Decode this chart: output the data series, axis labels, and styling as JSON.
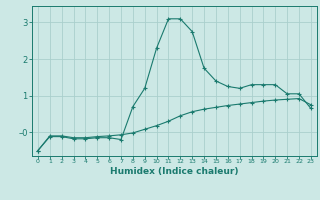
{
  "xlabel": "Humidex (Indice chaleur)",
  "bg_color": "#cce8e5",
  "line_color": "#1a7a6e",
  "grid_color": "#aacfcc",
  "x_values": [
    0,
    1,
    2,
    3,
    4,
    5,
    6,
    7,
    8,
    9,
    10,
    11,
    12,
    13,
    14,
    15,
    16,
    17,
    18,
    19,
    20,
    21,
    22,
    23
  ],
  "y1_values": [
    -0.5,
    -0.12,
    -0.12,
    -0.18,
    -0.18,
    -0.15,
    -0.15,
    -0.2,
    0.7,
    1.2,
    2.3,
    3.1,
    3.1,
    2.75,
    1.75,
    1.4,
    1.25,
    1.2,
    1.3,
    1.3,
    1.3,
    1.05,
    1.05,
    0.65
  ],
  "y2_values": [
    -0.5,
    -0.1,
    -0.1,
    -0.15,
    -0.15,
    -0.12,
    -0.1,
    -0.07,
    -0.02,
    0.08,
    0.18,
    0.3,
    0.45,
    0.56,
    0.63,
    0.68,
    0.73,
    0.77,
    0.81,
    0.85,
    0.88,
    0.9,
    0.92,
    0.75
  ],
  "ylim": [
    -0.65,
    3.45
  ],
  "yticks": [
    0,
    1,
    2,
    3
  ],
  "ytick_labels": [
    "–0",
    "1",
    "2",
    "3"
  ]
}
